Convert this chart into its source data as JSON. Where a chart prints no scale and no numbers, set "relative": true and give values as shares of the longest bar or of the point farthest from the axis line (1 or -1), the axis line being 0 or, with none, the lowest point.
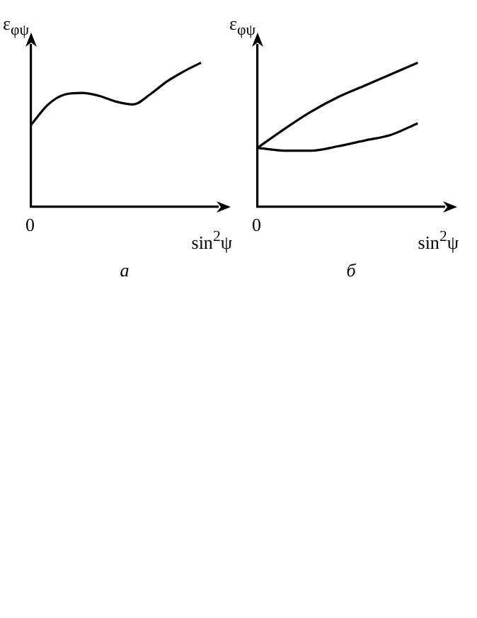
{
  "chart_data": [
    {
      "type": "line",
      "relative": true,
      "xlabel": "sin$^{2}$ψ",
      "ylabel": "ε$_{φψ}$",
      "subtitle": "а",
      "annotations": [
        "0"
      ],
      "categories": [
        null,
        null,
        null,
        null,
        null,
        null,
        null,
        null,
        null,
        null,
        null,
        null
      ],
      "series": [
        {
          "color": "#000000",
          "values": [
            0.57,
            0.71,
            0.78,
            0.79,
            0.77,
            0.73,
            0.71,
            0.78,
            0.87,
            0.94,
            1.0,
            null
          ]
        }
      ]
    },
    {
      "type": "line",
      "relative": true,
      "xlabel": "sin$^{2}$ψ",
      "ylabel": "ε$_{φψ}$",
      "subtitle": "б",
      "annotations": [
        "0"
      ],
      "categories": [
        null,
        null,
        null,
        null,
        null,
        null,
        null,
        null
      ],
      "series": [
        {
          "color": "#000000",
          "values": [
            0.41,
            0.54,
            0.66,
            0.76,
            0.84,
            0.92,
            1.0,
            null
          ]
        },
        {
          "color": "#000000",
          "values": [
            0.41,
            0.39,
            0.39,
            0.42,
            0.46,
            0.5,
            0.58,
            null
          ]
        }
      ]
    }
  ]
}
